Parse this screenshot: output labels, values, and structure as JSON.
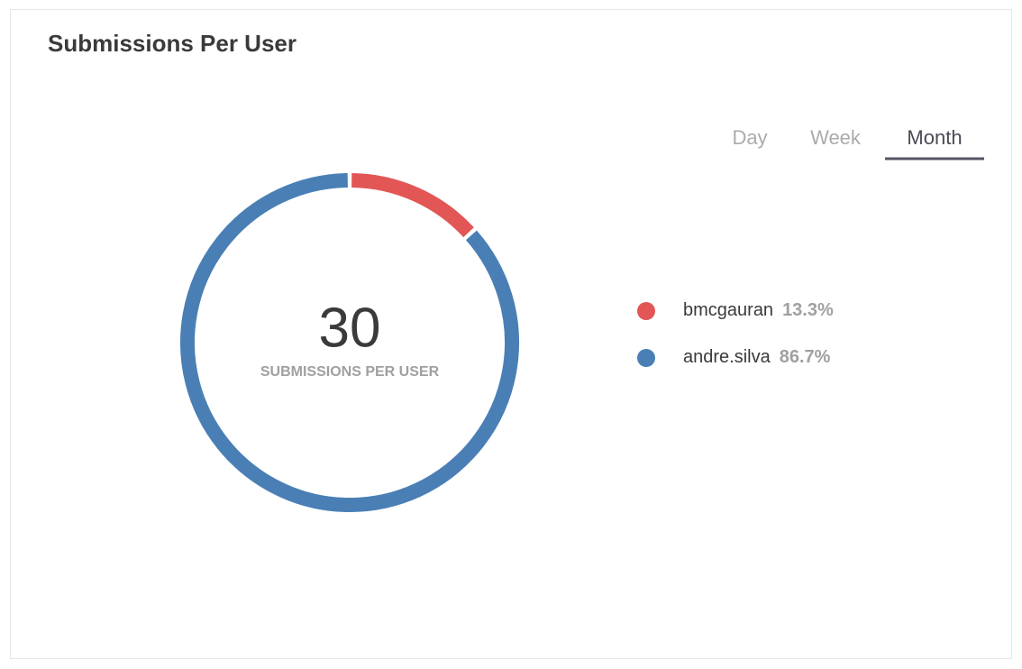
{
  "chart_data": {
    "type": "pie",
    "donut": true,
    "title": "Submissions Per User",
    "tabs": [
      "Day",
      "Week",
      "Month"
    ],
    "active_tab": 2,
    "center_value": 30,
    "center_label": "SUBMISSIONS PER USER",
    "categories": [
      "bmcgauran",
      "andre.silva"
    ],
    "values": [
      13.3,
      86.7
    ],
    "value_labels": [
      "13.3%",
      "86.7%"
    ],
    "colors": [
      "#e25656",
      "#4a7fb5"
    ]
  }
}
